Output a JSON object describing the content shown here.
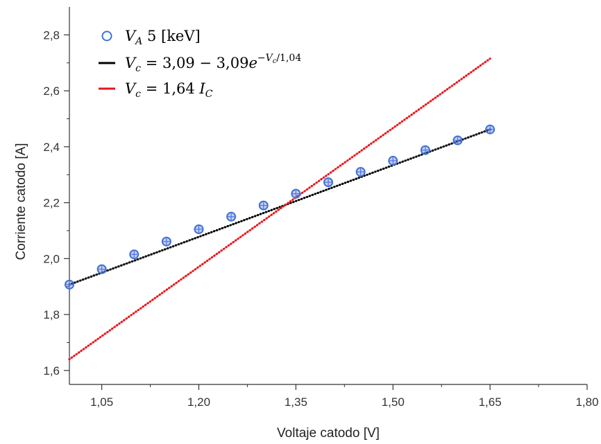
{
  "chart_data": {
    "type": "scatter",
    "xlabel": "Voltaje catodo [V]",
    "ylabel": "Corriente catodo [A]",
    "xlim": [
      1.0,
      1.8
    ],
    "ylim": [
      1.55,
      2.9
    ],
    "xticks": [
      1.05,
      1.2,
      1.35,
      1.5,
      1.65,
      1.8
    ],
    "xtick_labels": [
      "1,05",
      "1,20",
      "1,35",
      "1,50",
      "1,65",
      "1,80"
    ],
    "yticks": [
      1.6,
      1.8,
      2.0,
      2.2,
      2.4,
      2.6,
      2.8
    ],
    "ytick_labels": [
      "1,6",
      "1,8",
      "2,0",
      "2,2",
      "2,4",
      "2,6",
      "2,8"
    ],
    "grid": false,
    "legend_position": "top-left",
    "series": [
      {
        "name": "V_A 5 [keV]",
        "kind": "markers",
        "marker": "open-circle",
        "color": "#3b74d1",
        "x": [
          1.0,
          1.05,
          1.1,
          1.15,
          1.2,
          1.25,
          1.3,
          1.35,
          1.4,
          1.45,
          1.5,
          1.55,
          1.6,
          1.65
        ],
        "y": [
          1.907,
          1.962,
          2.015,
          2.061,
          2.105,
          2.15,
          2.19,
          2.232,
          2.273,
          2.31,
          2.35,
          2.388,
          2.423,
          2.462
        ]
      },
      {
        "name": "V_c = 3,09 − 3,09e^(−V_c/1,04)",
        "kind": "dotted-line",
        "color": "#000000",
        "x": [
          1.0,
          1.65
        ],
        "y": [
          1.907,
          2.462
        ]
      },
      {
        "name": "V_c = 1,64 I_C",
        "kind": "dotted-line",
        "color": "#e8141b",
        "x": [
          1.0,
          1.65
        ],
        "y": [
          1.64,
          2.715
        ]
      }
    ]
  },
  "legend": {
    "item0_symbol": "V",
    "item0_sub": "A",
    "item0_rest": " 5 [keV]",
    "item1_lhs": "V",
    "item1_lhs_sub": "c",
    "item1_mid": " = 3,09 − 3,09",
    "item1_e": "e",
    "item1_exp_minus": "−",
    "item1_exp_v": "V",
    "item1_exp_sub": "c",
    "item1_exp_rest": "/1,04",
    "item2_lhs": "V",
    "item2_lhs_sub": "c",
    "item2_mid": " = 1,64 ",
    "item2_rhs": "I",
    "item2_rhs_sub": "C"
  }
}
